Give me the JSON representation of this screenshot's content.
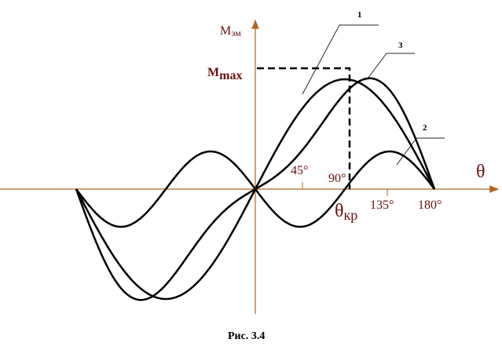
{
  "axes": {
    "y_label": {
      "symbol": "M",
      "subscript": "эм"
    },
    "x_label": "θ"
  },
  "labels": {
    "m_max": {
      "symbol": "M",
      "subscript": "max"
    },
    "theta_cr": {
      "symbol": "θ",
      "subscript": "кр"
    }
  },
  "ticks": [
    "45°",
    "90°",
    "135°",
    "180°"
  ],
  "curves": [
    "1",
    "2",
    "3"
  ],
  "caption": "Рис. 3.4"
}
